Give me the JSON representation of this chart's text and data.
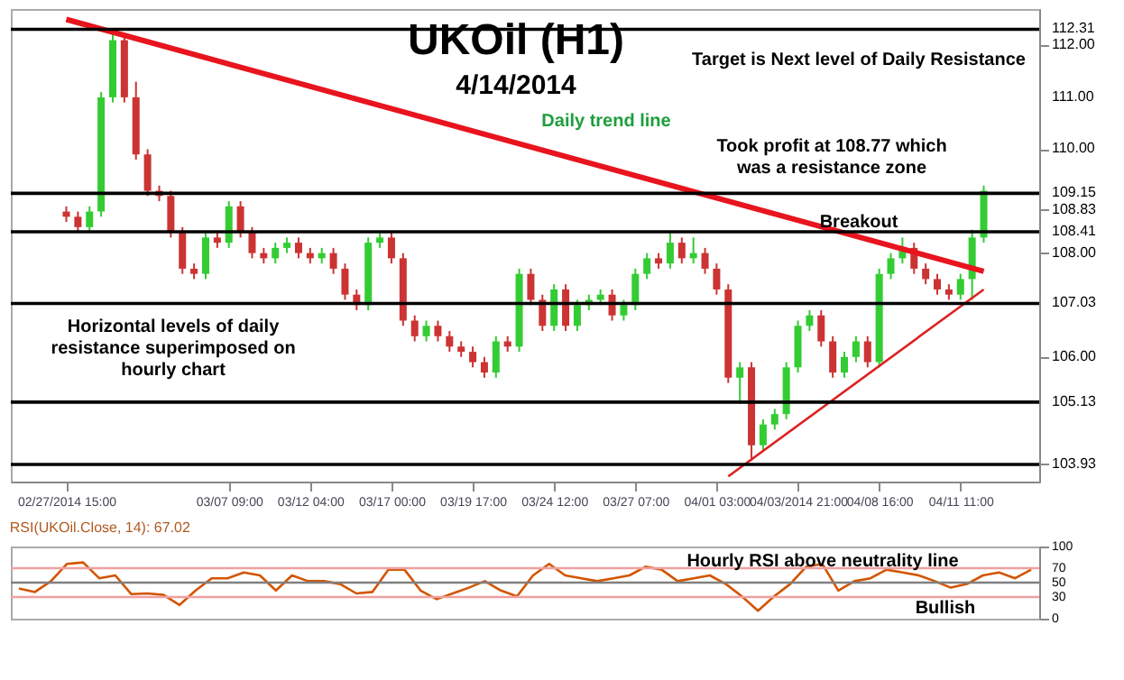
{
  "chart_data": [
    {
      "type": "candlestick",
      "title": "UKOil (H1)",
      "subtitle": "4/14/2014",
      "categories": [
        "02/27/2014 15:00",
        null,
        null,
        null,
        null,
        null,
        null,
        null,
        null,
        null,
        null,
        null,
        null,
        null,
        "03/07 09:00",
        null,
        null,
        null,
        null,
        null,
        null,
        "03/12 04:00",
        null,
        null,
        null,
        null,
        null,
        null,
        "03/17 00:00",
        null,
        null,
        null,
        null,
        null,
        null,
        "03/19 17:00",
        null,
        null,
        null,
        null,
        null,
        null,
        "03/24 12:00",
        null,
        null,
        null,
        null,
        null,
        null,
        "03/27 07:00",
        null,
        null,
        null,
        null,
        null,
        null,
        "04/01 03:00",
        null,
        null,
        null,
        null,
        null,
        null,
        "04/03/2014 21:00",
        null,
        null,
        null,
        null,
        null,
        null,
        "04/08 16:00",
        null,
        null,
        null,
        null,
        null,
        null,
        "04/11 11:00",
        null,
        null
      ],
      "ohlc": [
        [
          108.8,
          108.9,
          108.6,
          108.7
        ],
        [
          108.7,
          108.8,
          108.4,
          108.5
        ],
        [
          108.5,
          108.9,
          108.4,
          108.8
        ],
        [
          108.8,
          111.1,
          108.7,
          111.0
        ],
        [
          111.0,
          112.3,
          110.9,
          112.1
        ],
        [
          112.1,
          112.2,
          110.9,
          111.0
        ],
        [
          111.0,
          111.3,
          109.8,
          109.9
        ],
        [
          109.9,
          110.0,
          109.1,
          109.2
        ],
        [
          109.2,
          109.3,
          109.0,
          109.1
        ],
        [
          109.1,
          109.2,
          108.3,
          108.4
        ],
        [
          108.4,
          108.5,
          107.6,
          107.7
        ],
        [
          107.7,
          107.8,
          107.5,
          107.6
        ],
        [
          107.6,
          108.4,
          107.5,
          108.3
        ],
        [
          108.3,
          108.4,
          108.1,
          108.2
        ],
        [
          108.2,
          109.0,
          108.1,
          108.9
        ],
        [
          108.9,
          109.0,
          108.3,
          108.4
        ],
        [
          108.4,
          108.5,
          107.9,
          108.0
        ],
        [
          108.0,
          108.1,
          107.8,
          107.9
        ],
        [
          107.9,
          108.2,
          107.8,
          108.1
        ],
        [
          108.1,
          108.3,
          108.0,
          108.2
        ],
        [
          108.2,
          108.3,
          107.9,
          108.0
        ],
        [
          108.0,
          108.1,
          107.8,
          107.9
        ],
        [
          107.9,
          108.1,
          107.8,
          108.0
        ],
        [
          108.0,
          108.1,
          107.6,
          107.7
        ],
        [
          107.7,
          107.8,
          107.1,
          107.2
        ],
        [
          107.2,
          107.3,
          106.9,
          107.0
        ],
        [
          107.0,
          108.3,
          106.9,
          108.2
        ],
        [
          108.2,
          108.4,
          108.1,
          108.3
        ],
        [
          108.3,
          108.4,
          107.8,
          107.9
        ],
        [
          107.9,
          108.0,
          106.6,
          106.7
        ],
        [
          106.7,
          106.8,
          106.3,
          106.4
        ],
        [
          106.4,
          106.7,
          106.3,
          106.6
        ],
        [
          106.6,
          106.7,
          106.3,
          106.4
        ],
        [
          106.4,
          106.5,
          106.1,
          106.2
        ],
        [
          106.2,
          106.3,
          106.0,
          106.1
        ],
        [
          106.1,
          106.2,
          105.8,
          105.9
        ],
        [
          105.9,
          106.0,
          105.6,
          105.7
        ],
        [
          105.7,
          106.4,
          105.6,
          106.3
        ],
        [
          106.3,
          106.4,
          106.1,
          106.2
        ],
        [
          106.2,
          107.7,
          106.1,
          107.6
        ],
        [
          107.6,
          107.7,
          107.0,
          107.1
        ],
        [
          107.1,
          107.2,
          106.5,
          106.6
        ],
        [
          106.6,
          107.4,
          106.5,
          107.3
        ],
        [
          107.3,
          107.4,
          106.5,
          106.6
        ],
        [
          106.6,
          107.1,
          106.5,
          107.0
        ],
        [
          107.0,
          107.2,
          106.9,
          107.1
        ],
        [
          107.1,
          107.3,
          107.0,
          107.2
        ],
        [
          107.2,
          107.3,
          106.7,
          106.8
        ],
        [
          106.8,
          107.1,
          106.7,
          107.0
        ],
        [
          107.0,
          107.7,
          106.9,
          107.6
        ],
        [
          107.6,
          108.0,
          107.5,
          107.9
        ],
        [
          107.9,
          108.0,
          107.7,
          107.8
        ],
        [
          107.8,
          108.4,
          107.7,
          108.2
        ],
        [
          108.2,
          108.3,
          107.8,
          107.9
        ],
        [
          107.9,
          108.3,
          107.8,
          108.0
        ],
        [
          108.0,
          108.1,
          107.6,
          107.7
        ],
        [
          107.7,
          107.8,
          107.2,
          107.3
        ],
        [
          107.3,
          107.4,
          105.5,
          105.6
        ],
        [
          105.6,
          105.9,
          105.1,
          105.8
        ],
        [
          105.8,
          105.9,
          104.0,
          104.3
        ],
        [
          104.3,
          104.8,
          104.2,
          104.7
        ],
        [
          104.7,
          105.0,
          104.6,
          104.9
        ],
        [
          104.9,
          105.9,
          104.8,
          105.8
        ],
        [
          105.8,
          106.7,
          105.7,
          106.6
        ],
        [
          106.6,
          106.9,
          106.5,
          106.8
        ],
        [
          106.8,
          106.9,
          106.2,
          106.3
        ],
        [
          106.3,
          106.4,
          105.6,
          105.7
        ],
        [
          105.7,
          106.1,
          105.6,
          106.0
        ],
        [
          106.0,
          106.4,
          105.9,
          106.3
        ],
        [
          106.3,
          106.4,
          105.8,
          105.9
        ],
        [
          105.9,
          107.7,
          105.8,
          107.6
        ],
        [
          107.6,
          108.0,
          107.5,
          107.9
        ],
        [
          107.9,
          108.3,
          107.8,
          108.1
        ],
        [
          108.1,
          108.2,
          107.6,
          107.7
        ],
        [
          107.7,
          107.8,
          107.4,
          107.5
        ],
        [
          107.5,
          107.6,
          107.2,
          107.3
        ],
        [
          107.3,
          107.4,
          107.1,
          107.2
        ],
        [
          107.2,
          107.6,
          107.1,
          107.5
        ],
        [
          107.5,
          108.45,
          107.1,
          108.3
        ],
        [
          108.3,
          109.3,
          108.2,
          109.2
        ]
      ],
      "colors": [
        "#cc3333",
        "#cc3333",
        "#33cc33",
        "#33cc33",
        "#33cc33",
        "#cc3333",
        "#cc3333",
        "#cc3333",
        "#cc3333",
        "#cc3333",
        "#cc3333",
        "#cc3333",
        "#33cc33",
        "#cc3333",
        "#33cc33",
        "#cc3333",
        "#cc3333",
        "#cc3333",
        "#33cc33",
        "#33cc33",
        "#cc3333",
        "#cc3333",
        "#33cc33",
        "#cc3333",
        "#cc3333",
        "#cc3333",
        "#33cc33",
        "#33cc33",
        "#cc3333",
        "#cc3333",
        "#cc3333",
        "#33cc33",
        "#cc3333",
        "#cc3333",
        "#cc3333",
        "#cc3333",
        "#cc3333",
        "#33cc33",
        "#cc3333",
        "#33cc33",
        "#cc3333",
        "#cc3333",
        "#33cc33",
        "#cc3333",
        "#33cc33",
        "#33cc33",
        "#33cc33",
        "#cc3333",
        "#33cc33",
        "#33cc33",
        "#33cc33",
        "#cc3333",
        "#33cc33",
        "#cc3333",
        "#33cc33",
        "#cc3333",
        "#cc3333",
        "#cc3333",
        "#33cc33",
        "#cc3333",
        "#33cc33",
        "#33cc33",
        "#33cc33",
        "#33cc33",
        "#33cc33",
        "#cc3333",
        "#cc3333",
        "#33cc33",
        "#33cc33",
        "#cc3333",
        "#33cc33",
        "#33cc33",
        "#33cc33",
        "#cc3333",
        "#cc3333",
        "#cc3333",
        "#cc3333",
        "#33cc33",
        "#33cc33",
        "#33cc33"
      ],
      "series": [
        {
          "type": "line",
          "color": "#e8141e",
          "values": [
            112.5,
            null,
            null,
            null,
            null,
            null,
            null,
            null,
            null,
            null,
            null,
            null,
            null,
            null,
            null,
            null,
            null,
            null,
            null,
            null,
            null,
            null,
            null,
            null,
            null,
            null,
            null,
            null,
            null,
            null,
            null,
            null,
            null,
            null,
            null,
            null,
            null,
            null,
            null,
            null,
            null,
            null,
            null,
            null,
            null,
            null,
            null,
            null,
            null,
            null,
            null,
            null,
            null,
            null,
            null,
            null,
            null,
            null,
            null,
            null,
            null,
            null,
            null,
            null,
            null,
            null,
            null,
            null,
            null,
            null,
            null,
            null,
            null,
            null,
            null,
            null,
            null,
            null,
            null,
            107.65
          ]
        },
        {
          "type": "line",
          "color": "#dd2222",
          "values": [
            null,
            null,
            null,
            null,
            null,
            null,
            null,
            null,
            null,
            null,
            null,
            null,
            null,
            null,
            null,
            null,
            null,
            null,
            null,
            null,
            null,
            null,
            null,
            null,
            null,
            null,
            null,
            null,
            null,
            null,
            null,
            null,
            null,
            null,
            null,
            null,
            null,
            null,
            null,
            null,
            null,
            null,
            null,
            null,
            null,
            null,
            null,
            null,
            null,
            null,
            null,
            null,
            null,
            null,
            null,
            null,
            null,
            103.7,
            null,
            null,
            null,
            null,
            null,
            null,
            null,
            null,
            null,
            null,
            null,
            null,
            null,
            null,
            null,
            null,
            null,
            null,
            null,
            null,
            null,
            107.3
          ]
        }
      ],
      "ylim": [
        103.6,
        112.7
      ],
      "yticks": [
        {
          "value": 103.93,
          "label": "103.93"
        },
        {
          "value": 105.13,
          "label": "105.13"
        },
        {
          "value": 106,
          "label": "106.00"
        },
        {
          "value": 107.03,
          "label": "107.03"
        },
        {
          "value": 108,
          "label": "108.00"
        },
        {
          "value": 108.41,
          "label": "108.41"
        },
        {
          "value": 108.83,
          "label": "108.83"
        },
        {
          "value": 109.15,
          "label": "109.15"
        },
        {
          "value": 110,
          "label": "110.00"
        },
        {
          "value": 111,
          "label": "111.00"
        },
        {
          "value": 112,
          "label": "112.00"
        },
        {
          "value": 112.31,
          "label": "112.31"
        }
      ],
      "ref_lines": [
        {
          "axis": "y",
          "value": 112.31,
          "color": "#000000"
        },
        {
          "axis": "y",
          "value": 109.15,
          "color": "#000000"
        },
        {
          "axis": "y",
          "value": 108.41,
          "color": "#000000"
        },
        {
          "axis": "y",
          "value": 107.03,
          "color": "#000000"
        },
        {
          "axis": "y",
          "value": 105.13,
          "color": "#000000"
        },
        {
          "axis": "y",
          "value": 103.93,
          "color": "#000000"
        }
      ],
      "annotations": [
        "Daily trend line",
        "Target is Next level of Daily Resistance",
        "Took profit at 108.77 which was a resistance zone",
        "Breakout",
        "Horizontal levels of daily resistance superimposed on hourly chart"
      ]
    },
    {
      "type": "line",
      "title": "RSI(UKOil.Close, 14): 67.02",
      "tick_labels": "y",
      "categories": [
        null,
        null,
        null,
        null,
        null,
        null,
        null,
        null,
        null,
        null,
        null,
        null,
        null,
        null,
        null,
        null,
        null,
        null,
        null,
        null,
        null,
        null,
        null,
        null,
        null,
        null,
        null,
        null,
        null,
        null,
        null,
        null,
        null,
        null,
        null,
        null,
        null,
        null,
        null,
        null,
        null,
        null,
        null,
        null,
        null,
        null,
        null,
        null,
        null,
        null,
        null,
        null,
        null,
        null,
        null,
        null,
        null,
        null,
        null,
        null,
        null,
        null,
        null,
        null
      ],
      "series": [
        {
          "color": "#d35400",
          "values": [
            42,
            37,
            52,
            76,
            78,
            56,
            60,
            34,
            35,
            33,
            19,
            39,
            56,
            56,
            64,
            60,
            39,
            60,
            52,
            52,
            48,
            35,
            37,
            68,
            68,
            39,
            27,
            35,
            43,
            52,
            39,
            31,
            60,
            76,
            60,
            56,
            52,
            56,
            60,
            72,
            68,
            52,
            56,
            60,
            48,
            31,
            11,
            31,
            48,
            72,
            76,
            39,
            52,
            56,
            68,
            64,
            60,
            52,
            43,
            48,
            60,
            64,
            56,
            68
          ]
        }
      ],
      "ylim": [
        0,
        100
      ],
      "yticks": [
        0,
        30,
        50,
        70,
        100
      ],
      "ref_lines": [
        {
          "axis": "y",
          "value": 30,
          "color": "#f0a0a0"
        },
        {
          "axis": "y",
          "value": 50,
          "color": "#808080"
        },
        {
          "axis": "y",
          "value": 70,
          "color": "#f0a0a0"
        }
      ],
      "annotations": [
        "Hourly RSI above neutrality line",
        "Bullish"
      ]
    }
  ]
}
